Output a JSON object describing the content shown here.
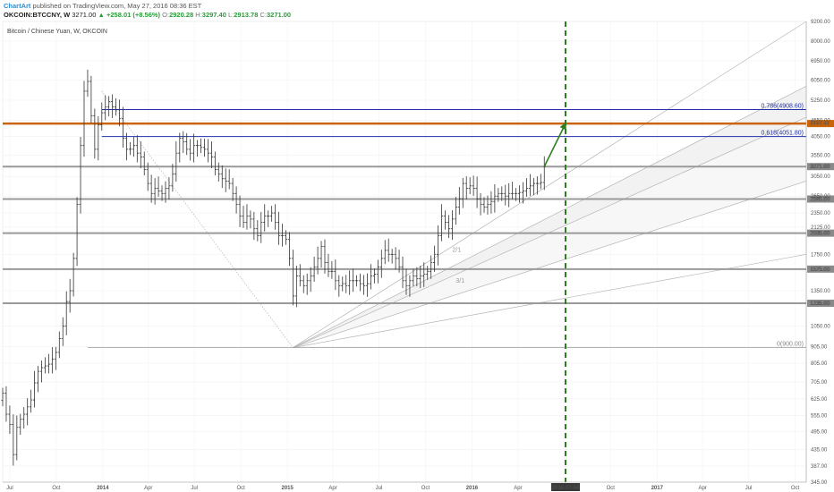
{
  "header": {
    "brand": "ChartArt",
    "published": "published on TradingView.com, May 27, 2016 08:36 EST",
    "symbol": "OKCOIN:BTCCNY, W",
    "last": "3271.00",
    "change": "▲ +258.01 (+8.56%)",
    "o_label": "O:",
    "o_value": "2920.28",
    "h_label": "H:",
    "h_value": "3297.40",
    "l_label": "L:",
    "l_value": "2913.78",
    "c_label": "C:",
    "c_value": "3271.00"
  },
  "chart_data": {
    "type": "candlestick",
    "title": "Bitcoin / Chinese Yuan, W, OKCOIN",
    "x_range": [
      "2013-06-17",
      "2017-10-23"
    ],
    "y_range": [
      345,
      9200
    ],
    "y_scale": "log",
    "y_ticks": [
      "9200.00",
      "8000.00",
      "6950.00",
      "6050.00",
      "5250.00",
      "4550.00",
      "4050.00",
      "3550.00",
      "3271.00",
      "3050.00",
      "2650.00",
      "2595.00",
      "2350.00",
      "2125.00",
      "2035.00",
      "1750.00",
      "1575.00",
      "1350.00",
      "1235.00",
      "1050.00",
      "905.00",
      "805.00",
      "705.00",
      "625.00",
      "555.00",
      "495.00",
      "435.00",
      "387.00",
      "345.00"
    ],
    "x_ticks": [
      "Jul",
      "Oct",
      "2014",
      "Apr",
      "Jul",
      "Oct",
      "2015",
      "Apr",
      "Jul",
      "Oct",
      "2016",
      "Apr",
      "Jul",
      "Oct",
      "2017",
      "Apr",
      "Jul",
      "Oct"
    ],
    "horizontal_levels": [
      3271,
      2595,
      2035,
      1575,
      1235
    ],
    "horizontal_level_labels": [
      "3271.00",
      "2595.00",
      "2035.00",
      "1575.00",
      "1235.00"
    ],
    "resistance_level": 4444.44,
    "resistance_label": "4444.44",
    "fib_levels": [
      {
        "value": 4908.6,
        "label": "0.786(4908.60)"
      },
      {
        "value": 4051.8,
        "label": "0.618(4051.80)"
      },
      {
        "value": 900.0,
        "label": "0(900.00)"
      }
    ],
    "gann_labels": [
      "2/1",
      "3/1"
    ],
    "vertical_marker": {
      "date": "2016-07-04",
      "label": "2016-07-04"
    },
    "price_path": [
      [
        "2013-06-17",
        650
      ],
      [
        "2013-06-24",
        560
      ],
      [
        "2013-07-01",
        520
      ],
      [
        "2013-07-08",
        420
      ],
      [
        "2013-07-15",
        510
      ],
      [
        "2013-07-22",
        540
      ],
      [
        "2013-07-29",
        560
      ],
      [
        "2013-08-05",
        590
      ],
      [
        "2013-08-12",
        620
      ],
      [
        "2013-08-19",
        700
      ],
      [
        "2013-08-26",
        760
      ],
      [
        "2013-09-02",
        780
      ],
      [
        "2013-09-09",
        790
      ],
      [
        "2013-09-16",
        800
      ],
      [
        "2013-09-23",
        830
      ],
      [
        "2013-09-30",
        870
      ],
      [
        "2013-10-07",
        960
      ],
      [
        "2013-10-14",
        1050
      ],
      [
        "2013-10-21",
        1250
      ],
      [
        "2013-10-28",
        1350
      ],
      [
        "2013-11-04",
        1700
      ],
      [
        "2013-11-11",
        2500
      ],
      [
        "2013-11-18",
        3800
      ],
      [
        "2013-11-25",
        5600
      ],
      [
        "2013-12-02",
        6000
      ],
      [
        "2013-12-09",
        4700
      ],
      [
        "2013-12-16",
        3700
      ],
      [
        "2013-12-23",
        4400
      ],
      [
        "2013-12-30",
        4800
      ],
      [
        "2014-01-06",
        5000
      ],
      [
        "2014-01-13",
        5200
      ],
      [
        "2014-01-20",
        5000
      ],
      [
        "2014-01-27",
        4900
      ],
      [
        "2014-02-03",
        4600
      ],
      [
        "2014-02-10",
        4000
      ],
      [
        "2014-02-17",
        3700
      ],
      [
        "2014-02-24",
        3700
      ],
      [
        "2014-03-03",
        3800
      ],
      [
        "2014-03-10",
        3600
      ],
      [
        "2014-03-17",
        3500
      ],
      [
        "2014-03-24",
        3200
      ],
      [
        "2014-03-31",
        2900
      ],
      [
        "2014-04-07",
        2700
      ],
      [
        "2014-04-14",
        2800
      ],
      [
        "2014-04-21",
        2750
      ],
      [
        "2014-04-28",
        2700
      ],
      [
        "2014-05-05",
        2800
      ],
      [
        "2014-05-12",
        2850
      ],
      [
        "2014-05-19",
        3100
      ],
      [
        "2014-05-26",
        3600
      ],
      [
        "2014-06-02",
        4000
      ],
      [
        "2014-06-09",
        3900
      ],
      [
        "2014-06-16",
        3700
      ],
      [
        "2014-06-23",
        3600
      ],
      [
        "2014-06-30",
        3800
      ],
      [
        "2014-07-07",
        3800
      ],
      [
        "2014-07-14",
        3750
      ],
      [
        "2014-07-21",
        3700
      ],
      [
        "2014-07-28",
        3600
      ],
      [
        "2014-08-04",
        3500
      ],
      [
        "2014-08-11",
        3200
      ],
      [
        "2014-08-18",
        3100
      ],
      [
        "2014-08-25",
        3000
      ],
      [
        "2014-09-01",
        2950
      ],
      [
        "2014-09-08",
        2900
      ],
      [
        "2014-09-15",
        2700
      ],
      [
        "2014-09-22",
        2500
      ],
      [
        "2014-09-29",
        2300
      ],
      [
        "2014-10-06",
        2200
      ],
      [
        "2014-10-13",
        2300
      ],
      [
        "2014-10-20",
        2250
      ],
      [
        "2014-10-27",
        2100
      ],
      [
        "2014-11-03",
        2000
      ],
      [
        "2014-11-10",
        2200
      ],
      [
        "2014-11-17",
        2300
      ],
      [
        "2014-11-24",
        2300
      ],
      [
        "2014-12-01",
        2350
      ],
      [
        "2014-12-08",
        2200
      ],
      [
        "2014-12-15",
        2000
      ],
      [
        "2014-12-22",
        2000
      ],
      [
        "2014-12-29",
        1950
      ],
      [
        "2015-01-05",
        1700
      ],
      [
        "2015-01-12",
        1300
      ],
      [
        "2015-01-19",
        1500
      ],
      [
        "2015-01-26",
        1450
      ],
      [
        "2015-02-02",
        1400
      ],
      [
        "2015-02-09",
        1450
      ],
      [
        "2015-02-16",
        1500
      ],
      [
        "2015-02-23",
        1600
      ],
      [
        "2015-03-02",
        1700
      ],
      [
        "2015-03-09",
        1850
      ],
      [
        "2015-03-16",
        1650
      ],
      [
        "2015-03-23",
        1550
      ],
      [
        "2015-03-30",
        1550
      ],
      [
        "2015-04-06",
        1450
      ],
      [
        "2015-04-13",
        1400
      ],
      [
        "2015-04-20",
        1420
      ],
      [
        "2015-04-27",
        1400
      ],
      [
        "2015-05-04",
        1450
      ],
      [
        "2015-05-11",
        1450
      ],
      [
        "2015-05-18",
        1450
      ],
      [
        "2015-05-25",
        1420
      ],
      [
        "2015-06-01",
        1400
      ],
      [
        "2015-06-08",
        1420
      ],
      [
        "2015-06-15",
        1500
      ],
      [
        "2015-06-22",
        1520
      ],
      [
        "2015-06-29",
        1600
      ],
      [
        "2015-07-06",
        1700
      ],
      [
        "2015-07-13",
        1800
      ],
      [
        "2015-07-20",
        1750
      ],
      [
        "2015-07-27",
        1750
      ],
      [
        "2015-08-03",
        1700
      ],
      [
        "2015-08-10",
        1600
      ],
      [
        "2015-08-17",
        1450
      ],
      [
        "2015-08-24",
        1400
      ],
      [
        "2015-08-31",
        1450
      ],
      [
        "2015-09-07",
        1500
      ],
      [
        "2015-09-14",
        1470
      ],
      [
        "2015-09-21",
        1500
      ],
      [
        "2015-09-28",
        1520
      ],
      [
        "2015-10-05",
        1550
      ],
      [
        "2015-10-12",
        1650
      ],
      [
        "2015-10-19",
        1750
      ],
      [
        "2015-10-26",
        2000
      ],
      [
        "2015-11-02",
        2300
      ],
      [
        "2015-11-09",
        2200
      ],
      [
        "2015-11-16",
        2100
      ],
      [
        "2015-11-23",
        2250
      ],
      [
        "2015-11-30",
        2450
      ],
      [
        "2015-12-07",
        2600
      ],
      [
        "2015-12-14",
        2900
      ],
      [
        "2015-12-21",
        2800
      ],
      [
        "2015-12-28",
        2850
      ],
      [
        "2016-01-04",
        2800
      ],
      [
        "2016-01-11",
        2600
      ],
      [
        "2016-01-18",
        2500
      ],
      [
        "2016-01-25",
        2450
      ],
      [
        "2016-02-01",
        2500
      ],
      [
        "2016-02-08",
        2550
      ],
      [
        "2016-02-15",
        2650
      ],
      [
        "2016-02-22",
        2700
      ],
      [
        "2016-02-29",
        2700
      ],
      [
        "2016-03-07",
        2650
      ],
      [
        "2016-03-14",
        2700
      ],
      [
        "2016-03-21",
        2700
      ],
      [
        "2016-03-28",
        2700
      ],
      [
        "2016-04-04",
        2720
      ],
      [
        "2016-04-11",
        2750
      ],
      [
        "2016-04-18",
        2800
      ],
      [
        "2016-04-25",
        2850
      ],
      [
        "2016-05-02",
        2900
      ],
      [
        "2016-05-09",
        2900
      ],
      [
        "2016-05-16",
        2920
      ],
      [
        "2016-05-23",
        3271
      ]
    ],
    "projection": [
      [
        "2016-05-23",
        3271
      ],
      [
        "2016-07-04",
        4444.44
      ]
    ]
  }
}
